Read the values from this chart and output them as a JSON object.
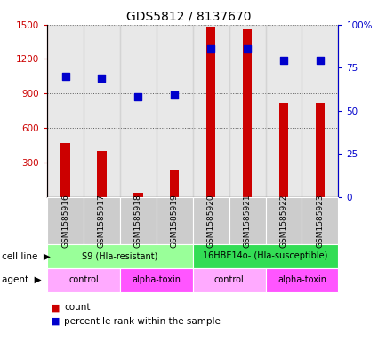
{
  "title": "GDS5812 / 8137670",
  "samples": [
    "GSM1585916",
    "GSM1585917",
    "GSM1585918",
    "GSM1585919",
    "GSM1585920",
    "GSM1585921",
    "GSM1585922",
    "GSM1585923"
  ],
  "counts": [
    470,
    400,
    40,
    240,
    1480,
    1460,
    820,
    820
  ],
  "percentile_ranks": [
    70,
    69,
    58,
    59,
    86,
    86,
    79,
    79
  ],
  "ylim_left": [
    0,
    1500
  ],
  "ylim_right": [
    0,
    100
  ],
  "yticks_left": [
    300,
    600,
    900,
    1200,
    1500
  ],
  "ytick_labels_left": [
    "300",
    "600",
    "900",
    "1200",
    "1500"
  ],
  "yticks_right": [
    0,
    25,
    50,
    75,
    100
  ],
  "ytick_labels_right": [
    "0",
    "25",
    "50",
    "75",
    "100%"
  ],
  "bar_color": "#cc0000",
  "dot_color": "#0000cc",
  "cell_line_groups": [
    {
      "label": "S9 (Hla-resistant)",
      "start": 0,
      "end": 4,
      "color": "#99ff99"
    },
    {
      "label": "16HBE14o- (Hla-susceptible)",
      "start": 4,
      "end": 8,
      "color": "#33dd55"
    }
  ],
  "agent_groups": [
    {
      "label": "control",
      "start": 0,
      "end": 2,
      "color": "#ffaaff"
    },
    {
      "label": "alpha-toxin",
      "start": 2,
      "end": 4,
      "color": "#ff55ff"
    },
    {
      "label": "control",
      "start": 4,
      "end": 6,
      "color": "#ffaaff"
    },
    {
      "label": "alpha-toxin",
      "start": 6,
      "end": 8,
      "color": "#ff55ff"
    }
  ],
  "left_axis_color": "#cc0000",
  "right_axis_color": "#0000cc",
  "sample_bg_color": "#cccccc",
  "bar_width": 0.25,
  "dot_size": 28
}
